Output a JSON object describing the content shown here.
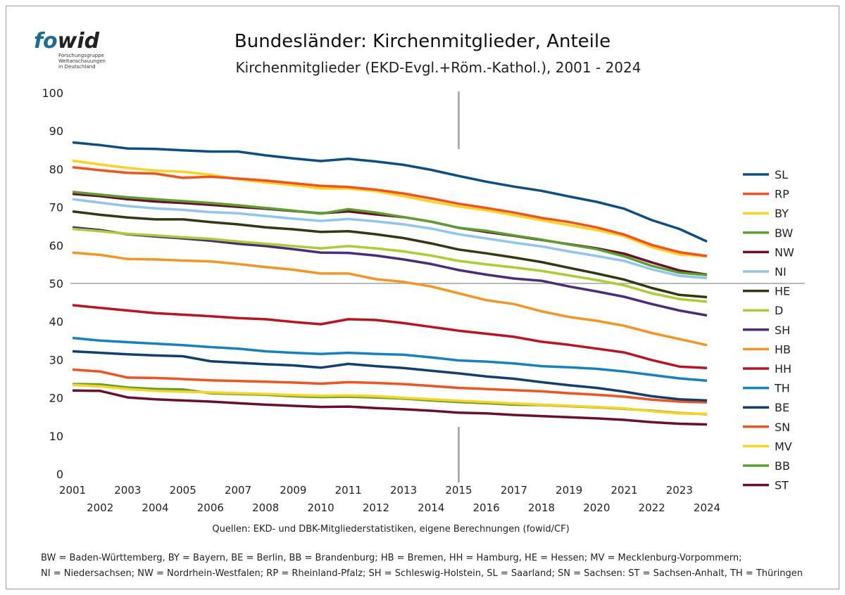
{
  "logo": {
    "fo": "fo",
    "wid": "wid",
    "text": "Forschungsgruppe\nWeltanschauungen\nin Deutschland"
  },
  "colors": {
    "SL": "#0b4f87",
    "RP": "#f4511e",
    "BY": "#f9d31c",
    "BW": "#5aa02c",
    "NW": "#6d0f2c",
    "NI": "#8fc6f0",
    "HE": "#2f3a10",
    "D": "#a8cf2c",
    "SH": "#4d2a7c",
    "HB": "#f7941d",
    "HH": "#c0111f",
    "TH": "#1481c6",
    "BE": "#0f3f73",
    "SN": "#f4511e",
    "MV": "#f9d31c",
    "BB": "#5aa02c",
    "ST": "#6d0f2c"
  },
  "chart_data": {
    "type": "line",
    "title": "Bundesländer: Kirchenmitglieder, Anteile",
    "subtitle": "Kirchenmitglieder (EKD-Evgl.+Röm.-Kathol.), 2001 - 2024",
    "x": [
      2001,
      2002,
      2003,
      2004,
      2005,
      2006,
      2007,
      2008,
      2009,
      2010,
      2011,
      2012,
      2013,
      2014,
      2015,
      2016,
      2017,
      2018,
      2019,
      2020,
      2021,
      2022,
      2023,
      2024
    ],
    "x_ticks_top": [
      "2001",
      "2003",
      "2005",
      "2007",
      "2009",
      "2011",
      "2013",
      "2015",
      "2017",
      "2019",
      "2021",
      "2023"
    ],
    "x_ticks_bottom": [
      "2002",
      "2004",
      "2006",
      "2008",
      "2010",
      "2012",
      "2014",
      "2016",
      "2018",
      "2020",
      "2022",
      "2024"
    ],
    "y_ticks": [
      "0",
      "10",
      "20",
      "30",
      "40",
      "50",
      "60",
      "70",
      "80",
      "90",
      "100"
    ],
    "ylim": [
      0,
      100
    ],
    "grid": false,
    "reference_line_y": 50,
    "marker_x": 2015,
    "legend_position": "right",
    "series": [
      {
        "name": "SL",
        "values": [
          87.0,
          86.3,
          85.4,
          85.3,
          84.9,
          84.6,
          84.6,
          83.6,
          82.8,
          82.1,
          82.7,
          82.0,
          81.1,
          79.8,
          78.2,
          76.7,
          75.4,
          74.3,
          72.8,
          71.4,
          69.6,
          66.6,
          64.3,
          61.0
        ]
      },
      {
        "name": "RP",
        "values": [
          80.5,
          79.7,
          79.0,
          78.8,
          77.7,
          78.0,
          77.5,
          77.0,
          76.3,
          75.6,
          75.3,
          74.6,
          73.6,
          72.3,
          70.9,
          69.8,
          68.6,
          67.2,
          66.1,
          64.7,
          62.8,
          60.1,
          58.2,
          57.2
        ]
      },
      {
        "name": "BY",
        "values": [
          82.2,
          81.2,
          80.3,
          79.6,
          79.3,
          78.5,
          77.3,
          76.5,
          75.8,
          74.9,
          74.9,
          74.2,
          72.9,
          71.5,
          70.2,
          69.2,
          67.9,
          66.6,
          65.3,
          64.0,
          62.4,
          59.5,
          57.6,
          57.1
        ]
      },
      {
        "name": "BW",
        "values": [
          74.0,
          73.3,
          72.6,
          72.1,
          71.6,
          71.1,
          70.5,
          69.8,
          69.1,
          68.3,
          69.5,
          68.6,
          67.4,
          66.2,
          64.6,
          63.8,
          62.6,
          61.5,
          60.2,
          59.0,
          57.1,
          54.6,
          52.8,
          52.2
        ]
      },
      {
        "name": "NW",
        "values": [
          73.5,
          72.9,
          72.1,
          71.5,
          71.1,
          70.6,
          70.1,
          69.6,
          69.0,
          68.4,
          68.9,
          68.1,
          67.4,
          66.2,
          64.6,
          63.5,
          62.5,
          61.4,
          60.3,
          59.2,
          57.8,
          55.5,
          53.4,
          52.3
        ]
      },
      {
        "name": "NI",
        "values": [
          72.1,
          71.2,
          70.3,
          69.7,
          69.3,
          68.7,
          68.4,
          67.7,
          67.0,
          66.4,
          66.9,
          66.3,
          65.5,
          64.4,
          62.9,
          61.8,
          60.7,
          59.7,
          58.4,
          57.2,
          55.9,
          53.7,
          52.0,
          51.4
        ]
      },
      {
        "name": "HE",
        "values": [
          68.9,
          68.0,
          67.3,
          66.8,
          66.8,
          66.1,
          65.5,
          64.7,
          64.2,
          63.5,
          63.7,
          62.9,
          61.9,
          60.5,
          58.9,
          57.9,
          56.8,
          55.6,
          54.1,
          52.6,
          51.0,
          48.8,
          47.0,
          46.4
        ]
      },
      {
        "name": "D",
        "values": [
          64.3,
          63.7,
          63.0,
          62.6,
          62.1,
          61.7,
          61.0,
          60.4,
          59.8,
          59.2,
          59.8,
          59.2,
          58.4,
          57.3,
          55.9,
          55.0,
          54.2,
          53.3,
          52.1,
          50.9,
          49.5,
          47.4,
          45.9,
          45.2
        ]
      },
      {
        "name": "SH",
        "values": [
          64.7,
          64.0,
          62.9,
          62.3,
          61.8,
          61.2,
          60.4,
          59.8,
          59.0,
          58.1,
          58.0,
          57.3,
          56.3,
          55.1,
          53.5,
          52.3,
          51.3,
          50.7,
          49.2,
          47.9,
          46.5,
          44.6,
          42.9,
          41.6
        ]
      },
      {
        "name": "HB",
        "values": [
          58.1,
          57.5,
          56.4,
          56.3,
          56.0,
          55.8,
          55.1,
          54.3,
          53.6,
          52.6,
          52.6,
          51.1,
          50.4,
          49.2,
          47.4,
          45.6,
          44.6,
          42.7,
          41.2,
          40.2,
          38.9,
          37.0,
          35.4,
          33.8
        ]
      },
      {
        "name": "HH",
        "values": [
          44.3,
          43.6,
          42.9,
          42.2,
          41.8,
          41.4,
          40.9,
          40.6,
          39.9,
          39.3,
          40.6,
          40.4,
          39.6,
          38.6,
          37.6,
          36.8,
          36.0,
          34.7,
          33.9,
          32.9,
          31.9,
          29.9,
          28.2,
          27.8
        ]
      },
      {
        "name": "TH",
        "values": [
          35.7,
          35.0,
          34.6,
          34.2,
          33.8,
          33.3,
          32.9,
          32.2,
          31.8,
          31.5,
          31.8,
          31.5,
          31.3,
          30.6,
          29.8,
          29.5,
          29.0,
          28.3,
          28.0,
          27.6,
          26.9,
          26.0,
          25.1,
          24.5
        ]
      },
      {
        "name": "BE",
        "values": [
          32.2,
          31.8,
          31.4,
          31.1,
          30.9,
          29.6,
          29.2,
          28.8,
          28.5,
          27.9,
          28.9,
          28.3,
          27.8,
          27.1,
          26.4,
          25.6,
          25.0,
          24.1,
          23.3,
          22.6,
          21.6,
          20.4,
          19.6,
          19.3
        ]
      },
      {
        "name": "SN",
        "values": [
          27.4,
          26.9,
          25.3,
          25.2,
          24.9,
          24.6,
          24.4,
          24.2,
          24.0,
          23.7,
          24.1,
          23.9,
          23.6,
          23.1,
          22.6,
          22.3,
          22.0,
          21.7,
          21.2,
          20.8,
          20.3,
          19.5,
          19.0,
          18.8
        ]
      },
      {
        "name": "MV",
        "values": [
          23.4,
          23.0,
          22.3,
          21.8,
          21.6,
          21.4,
          21.2,
          21.0,
          20.7,
          20.5,
          20.6,
          20.4,
          20.0,
          19.6,
          19.2,
          18.9,
          18.5,
          18.2,
          17.9,
          17.6,
          17.2,
          16.5,
          15.9,
          15.8
        ]
      },
      {
        "name": "BB",
        "values": [
          23.6,
          23.5,
          22.7,
          22.3,
          22.2,
          21.2,
          21.0,
          20.8,
          20.4,
          20.2,
          20.3,
          20.1,
          19.8,
          19.3,
          18.9,
          18.6,
          18.2,
          18.1,
          17.8,
          17.5,
          17.1,
          16.6,
          16.0,
          15.7
        ]
      },
      {
        "name": "ST",
        "values": [
          21.9,
          21.8,
          20.1,
          19.6,
          19.3,
          19.0,
          18.6,
          18.2,
          17.9,
          17.6,
          17.7,
          17.3,
          17.0,
          16.6,
          16.1,
          15.9,
          15.5,
          15.2,
          14.9,
          14.6,
          14.2,
          13.6,
          13.2,
          13.0
        ]
      }
    ]
  },
  "footer": {
    "source": "Quellen: EKD- und DBK-Mitgliederstatistiken, eigene Berechnungen (fowid/CF)",
    "note_line1": "BW = Baden-Württemberg, BY = Bayern, BE = Berlin, BB = Brandenburg; HB = Bremen, HH = Hamburg, HE = Hessen; MV = Mecklenburg-Vorpommern;",
    "note_line2": "NI = Niedersachsen; NW = Nordrhein-Westfalen; RP = Rheinland-Pfalz; SH = Schleswig-Holstein, SL = Saarland; SN = Sachsen: ST = Sachsen-Anhalt, TH = Thüringen"
  }
}
